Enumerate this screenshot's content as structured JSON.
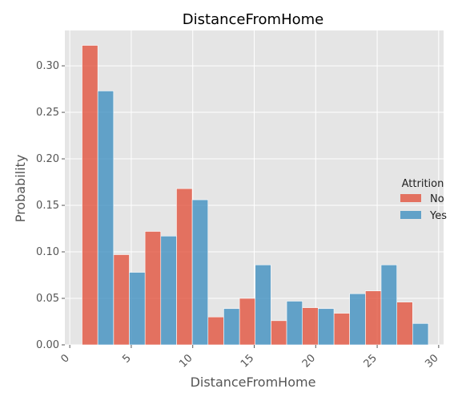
{
  "chart_data": {
    "type": "bar",
    "title": "DistanceFromHome",
    "xlabel": "DistanceFromHome",
    "ylabel": "Probability",
    "xlim": [
      -0.4,
      30.4
    ],
    "ylim": [
      0,
      0.338
    ],
    "x_ticks": [
      0,
      5,
      10,
      15,
      20,
      25,
      30
    ],
    "y_ticks": [
      0.0,
      0.05,
      0.1,
      0.15,
      0.2,
      0.25,
      0.3
    ],
    "bin_edges": [
      1.0,
      3.56,
      6.12,
      8.68,
      11.24,
      13.8,
      16.36,
      18.92,
      21.48,
      24.04,
      26.6,
      29.16
    ],
    "legend": {
      "title": "Attrition",
      "placement": "center-right"
    },
    "grid": true,
    "series": [
      {
        "name": "No",
        "color": "#E24A33",
        "values": [
          0.322,
          0.097,
          0.122,
          0.168,
          0.03,
          0.05,
          0.026,
          0.04,
          0.034,
          0.058,
          0.046
        ]
      },
      {
        "name": "Yes",
        "color": "#348ABD",
        "values": [
          0.273,
          0.078,
          0.117,
          0.156,
          0.039,
          0.086,
          0.047,
          0.039,
          0.055,
          0.086,
          0.023
        ]
      }
    ]
  }
}
